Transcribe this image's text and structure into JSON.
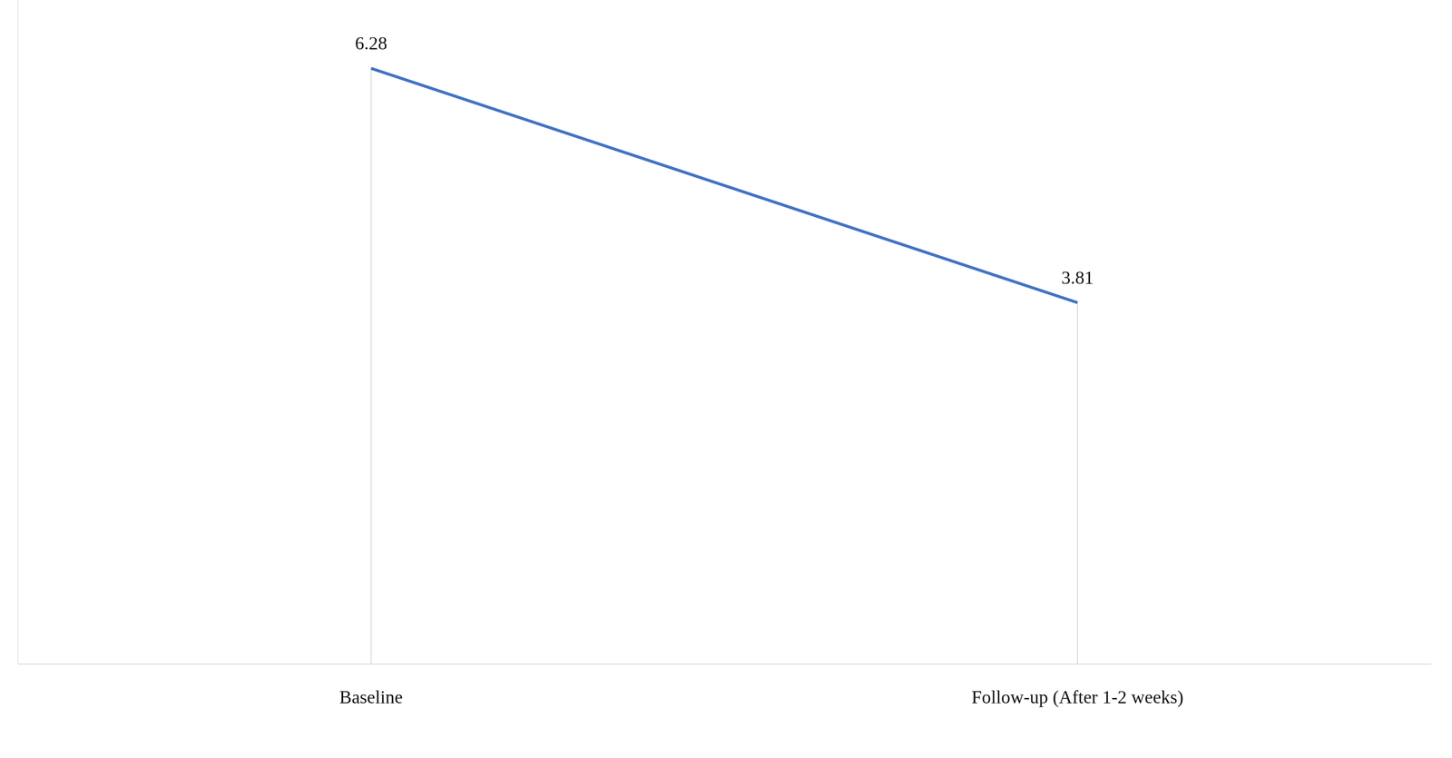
{
  "chart_data": {
    "type": "line",
    "categories": [
      "Baseline",
      "Follow-up (After 1-2 weeks)"
    ],
    "values": [
      6.28,
      3.81
    ],
    "color": "#4472c4",
    "ylim": [
      0,
      7
    ],
    "grid": false,
    "data_labels": true,
    "tick_labels": "x",
    "marker": "none",
    "line_style": "solid"
  }
}
